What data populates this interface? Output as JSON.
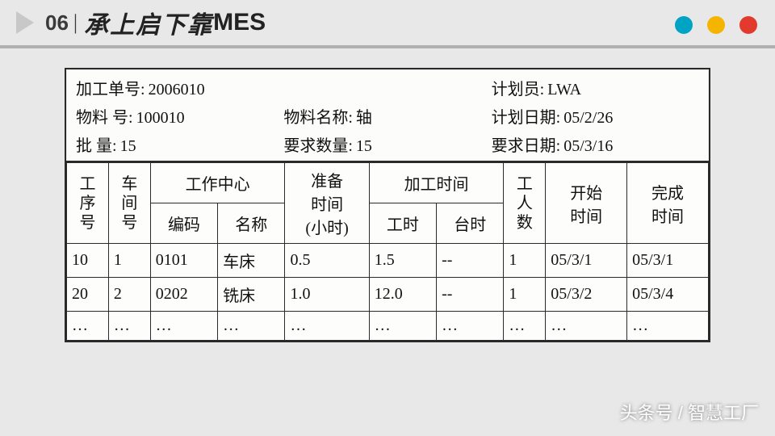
{
  "header": {
    "section_number": "06",
    "separator": "|",
    "title_zh": "承上启下靠",
    "title_en": "MES",
    "dot_colors": [
      "#00a3c4",
      "#f5b400",
      "#e23b2e"
    ]
  },
  "form": {
    "meta": {
      "order_no_label": "加工单号:",
      "order_no": "2006010",
      "planner_label": "计划员:",
      "planner": "LWA",
      "material_no_label": "物料  号:",
      "material_no": "100010",
      "material_name_label": "物料名称:",
      "material_name": "轴",
      "plan_date_label": "计划日期:",
      "plan_date": "05/2/26",
      "batch_label": "批     量:",
      "batch": "15",
      "req_qty_label": "要求数量:",
      "req_qty": "15",
      "req_date_label": "要求日期:",
      "req_date": "05/3/16"
    },
    "columns": {
      "seq": "工序号",
      "shop": "车间号",
      "work_center": "工作中心",
      "wc_code": "编码",
      "wc_name": "名称",
      "setup": "准备时间(小时)",
      "proc_time": "加工时间",
      "proc_hour": "工时",
      "proc_mach": "台时",
      "workers": "工人数",
      "start": "开始时间",
      "finish": "完成时间"
    },
    "rows": [
      {
        "seq": "10",
        "shop": "1",
        "wc_code": "0101",
        "wc_name": "车床",
        "setup": "0.5",
        "proc_hour": "1.5",
        "proc_mach": "--",
        "workers": "1",
        "start": "05/3/1",
        "finish": "05/3/1"
      },
      {
        "seq": "20",
        "shop": "2",
        "wc_code": "0202",
        "wc_name": "铣床",
        "setup": "1.0",
        "proc_hour": "12.0",
        "proc_mach": "--",
        "workers": "1",
        "start": "05/3/2",
        "finish": "05/3/4"
      },
      {
        "seq": "…",
        "shop": "…",
        "wc_code": "…",
        "wc_name": "…",
        "setup": "…",
        "proc_hour": "…",
        "proc_mach": "…",
        "workers": "…",
        "start": "…",
        "finish": "…"
      }
    ]
  },
  "watermark": "头条号 / 智慧工厂",
  "style": {
    "page_bg": "#e8e8e8",
    "rule_color": "#b0b0b0",
    "ink": "#2a2a2a",
    "paper": "#fcfcfa"
  }
}
